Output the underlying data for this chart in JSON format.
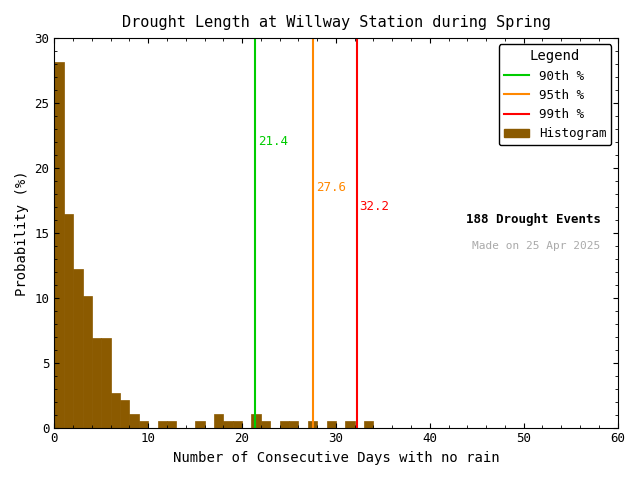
{
  "title": "Drought Length at Willway Station during Spring",
  "xlabel": "Number of Consecutive Days with no rain",
  "ylabel": "Probability (%)",
  "xlim": [
    0,
    60
  ],
  "ylim": [
    0,
    30
  ],
  "bar_color": "#8B5A00",
  "bar_edge_color": "#8B5A00",
  "background_color": "#ffffff",
  "percentile_90": 21.4,
  "percentile_95": 27.6,
  "percentile_99": 32.2,
  "color_90": "#00cc00",
  "color_95": "#ff8800",
  "color_99": "#ff0000",
  "n_events": 188,
  "made_on": "Made on 25 Apr 2025",
  "made_on_color": "#aaaaaa",
  "bin_width": 1,
  "bar_probabilities": [
    28.19,
    16.49,
    12.23,
    10.11,
    6.91,
    6.91,
    2.66,
    2.13,
    1.06,
    0.53,
    0.0,
    0.53,
    0.53,
    0.0,
    0.0,
    0.53,
    0.0,
    1.06,
    0.53,
    0.53,
    0.0,
    1.06,
    0.53,
    0.0,
    0.53,
    0.53,
    0.0,
    0.53,
    0.0,
    0.53,
    0.0,
    0.53,
    0.0,
    0.53,
    0.0,
    0.0,
    0.0,
    0.0,
    0.0,
    0.0,
    0.0,
    0.0,
    0.0,
    0.0,
    0.0,
    0.0,
    0.0,
    0.0,
    0.0,
    0.0,
    0.0,
    0.0,
    0.0,
    0.0,
    0.0,
    0.0,
    0.0,
    0.0,
    0.0,
    0.0
  ]
}
